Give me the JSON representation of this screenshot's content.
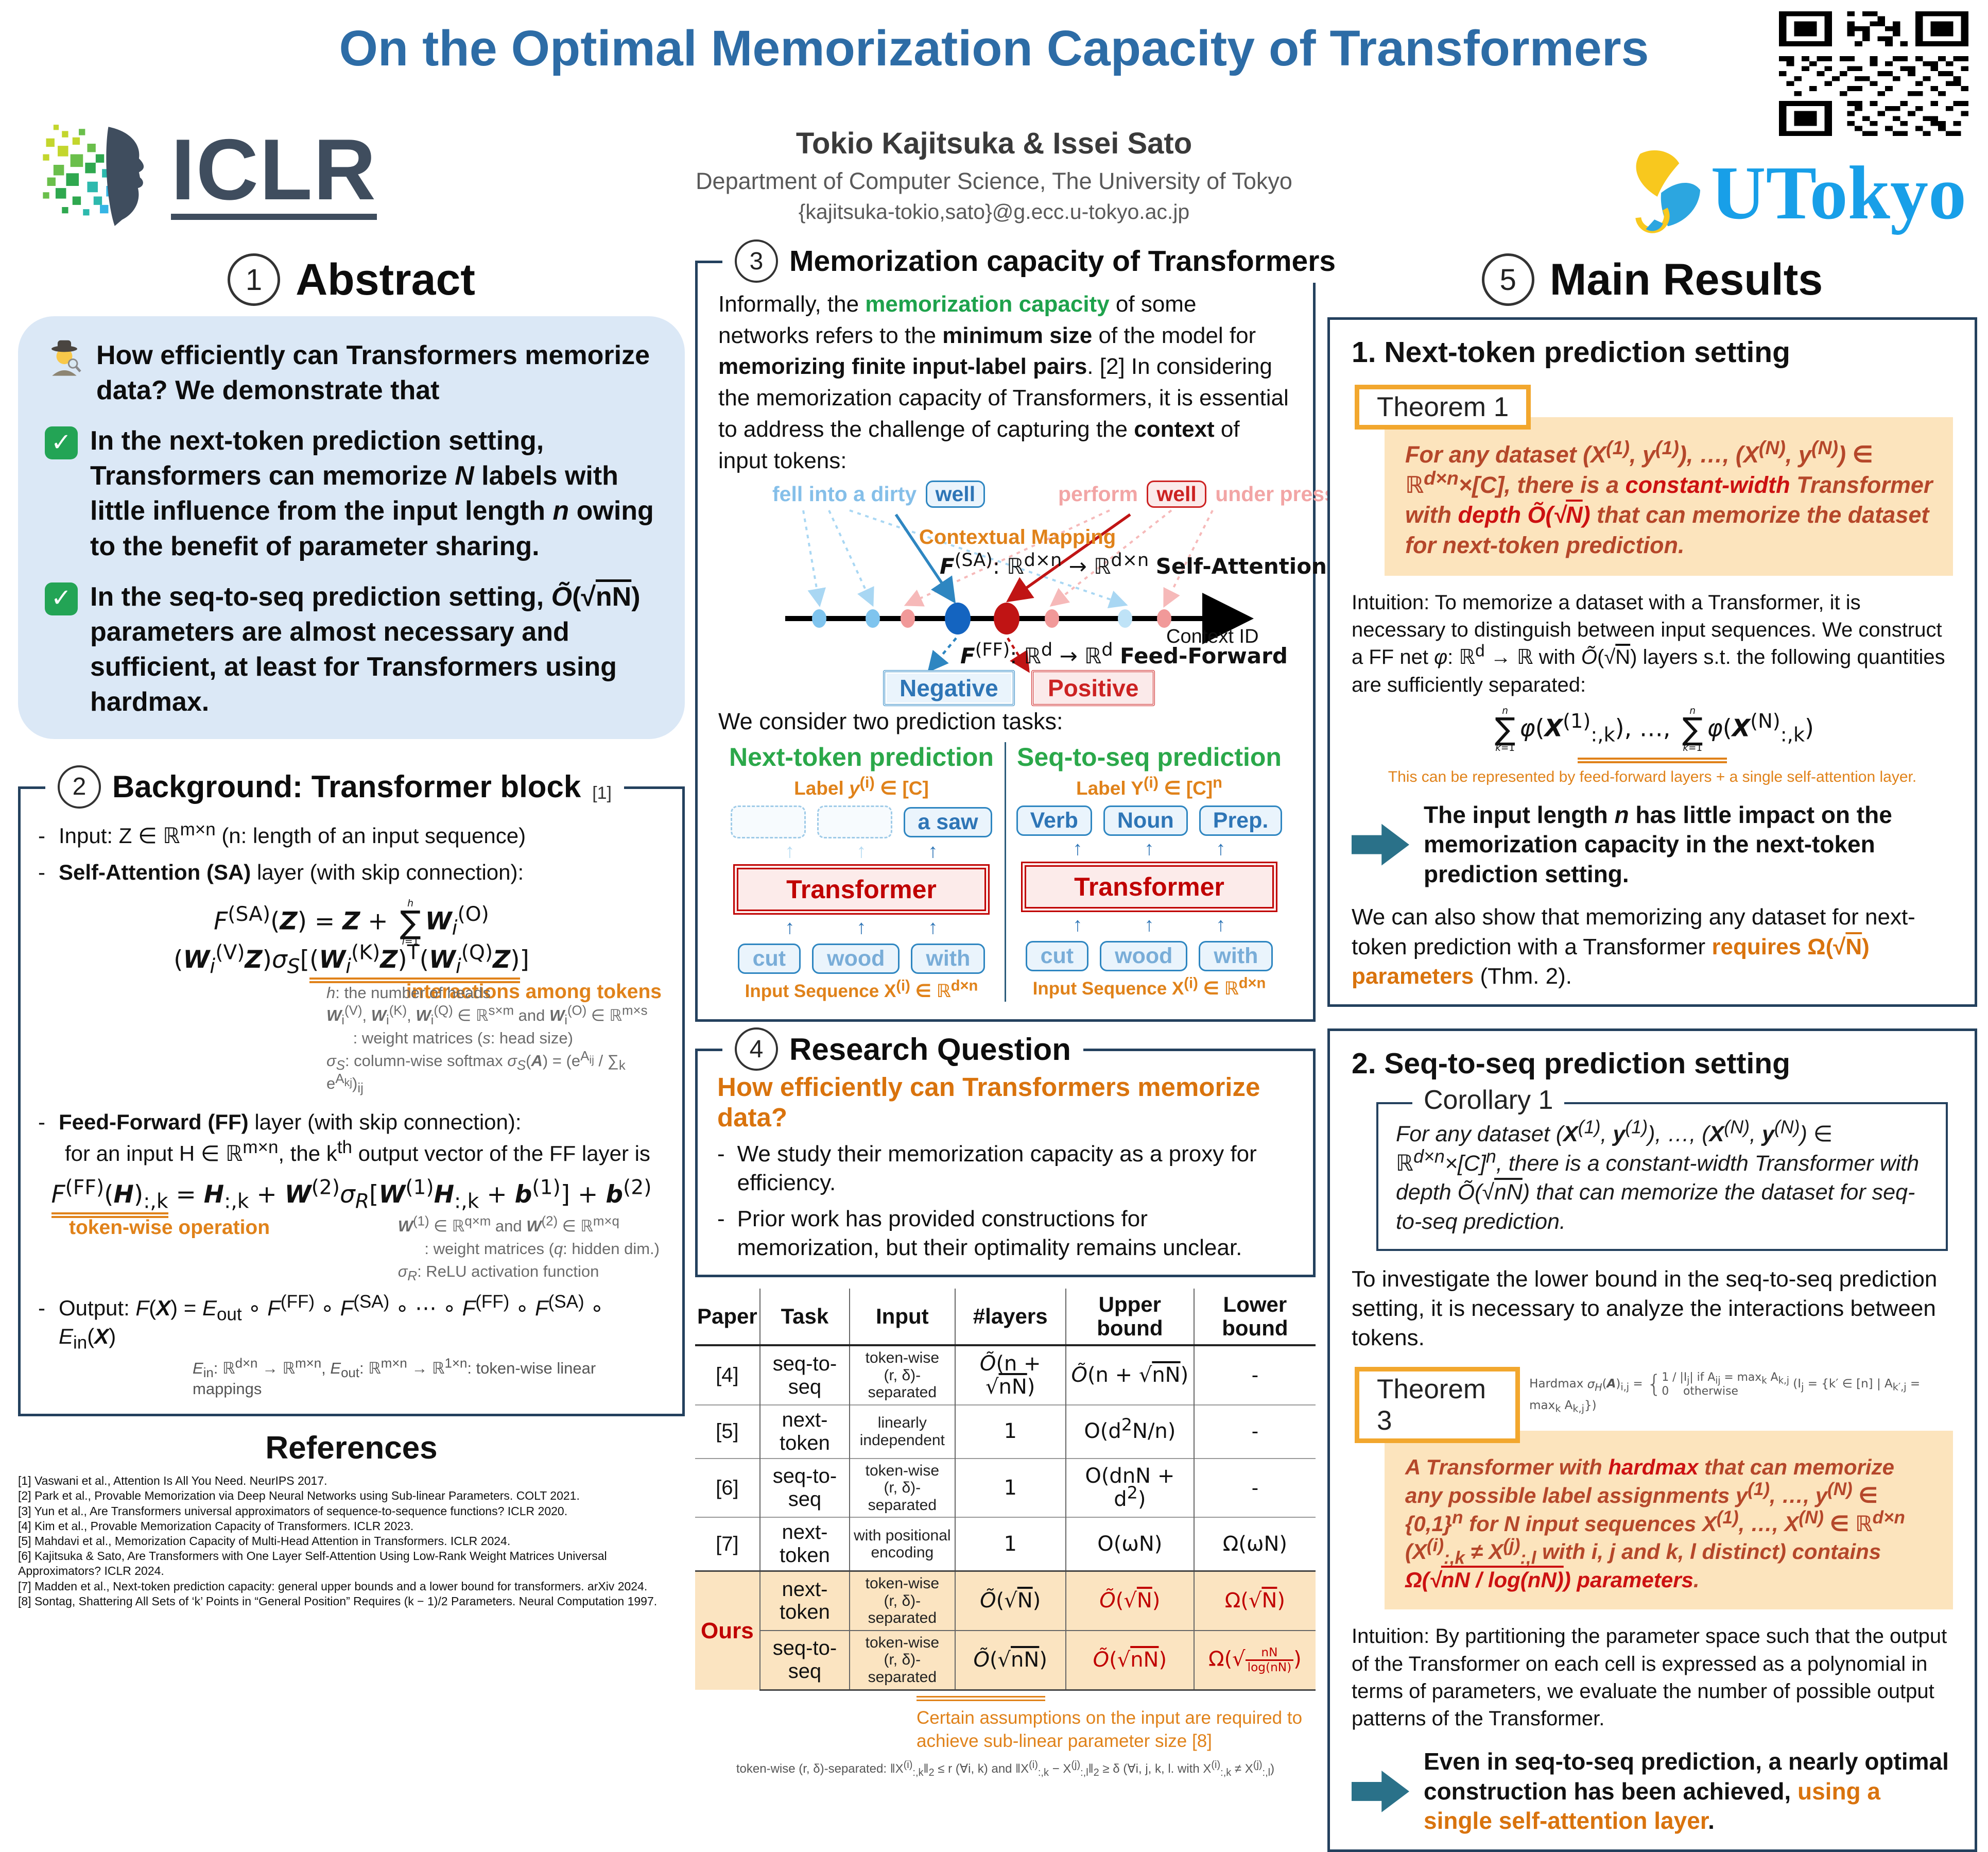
{
  "header": {
    "title": "On the Optimal Memorization Capacity of Transformers",
    "authors": "Tokio Kajitsuka & Issei Sato",
    "affiliation": "Department of Computer Science, The University of Tokyo",
    "email": "{kajitsuka-tokio,sato}@g.ecc.u-tokyo.ac.jp",
    "iclr_logo_text": "ICLR",
    "utokyo_logo_text": "UTokyo"
  },
  "icons": {
    "check": "✓",
    "up_arrow": "↑"
  },
  "colors": {
    "title_blue": "#2d6ca6",
    "navy_border": "#24415e",
    "orange": "#e0821a",
    "orange_text": "#d9730d",
    "green": "#1ea24c",
    "red": "#c00000",
    "theorem_fill": "#fce4bd",
    "theorem_border": "#f2a72e",
    "ours_row_bg": "#fbe4c1",
    "abstract_bg": "#dbe8f6",
    "teal_arrow": "#2a7189",
    "blue_box_border": "#2e86c1",
    "blue_text": "#2e75b6"
  },
  "abstract": {
    "number": "1",
    "title": "Abstract",
    "intro": "How efficiently can Transformers memorize data? We demonstrate that",
    "point1_html": "In the next-token prediction setting, Transformers can memorize <i>N</i> labels with little influence from the input length <i>n</i> owing to the benefit of parameter sharing.",
    "point2_html": "In the seq-to-seq prediction setting, <i>Õ</i>(√<span class='ov'>nN</span>) parameters are almost necessary and sufficient, at least for Transformers using hardmax."
  },
  "background": {
    "number": "2",
    "title": "Background: Transformer block",
    "ref": "[1]",
    "input_html": "Input: Z ∈ ℝ<sup>m×n</sup> (n: length of an input sequence)",
    "sa_head_html": "<b>Self-Attention (SA)</b> layer (with skip connection):",
    "sa_formula_html": "<i>F</i><sup>(SA)</sup>(<b><i>Z</i></b>) = <b><i>Z</i></b> + <span class='bigsum'><span class='lim'><i>h</i></span><span class='sig'>∑</span><span class='lim'><i>i</i>=1</span></span><b><i>W</i></b><sub><i>i</i></sub><sup>(O)</sup>(<b><i>W</i></b><sub><i>i</i></sub><sup>(V)</sup><b><i>Z</i></b>)<i>σ<sub>S</sub></i>[<span class='dblu'>(<b><i>W</i></b><sub><i>i</i></sub><sup>(K)</sup><b><i>Z</i></b>)<sup>T</sup>(<b><i>W</i></b><sub><i>i</i></sub><sup>(Q)</sup><b><i>Z</i></b>)</span>]",
    "sa_anno": "interactions among tokens",
    "sa_notes_html": "<i>h</i>: the number of heads<br><b><i>W</i></b><sub>i</sub><sup>(V)</sup>, <b><i>W</i></b><sub>i</sub><sup>(K)</sup>, <b><i>W</i></b><sub>i</sub><sup>(Q)</sup> ∈ ℝ<sup>s×m</sup> and <b><i>W</i></b><sub>i</sub><sup>(O)</sup> ∈ ℝ<sup>m×s</sup><br>&nbsp;&nbsp;&nbsp;&nbsp;&nbsp;&nbsp;: weight matrices (<i>s</i>: head size)<br><i>σ<sub>S</sub></i>: column-wise softmax <i>σ<sub>S</sub></i>(<b><i>A</i></b>) = (e<sup>A<sub>ij</sub></sup> / ∑<sub>k</sub> e<sup>A<sub>kj</sub></sup>)<sub>ij</sub>",
    "ff_head_html": "<b>Feed-Forward (FF)</b> layer (with skip connection):",
    "ff_sub_html": "for an input H ∈ ℝ<sup>m×n</sup>, the k<sup>th</sup> output vector of the FF layer is",
    "ff_formula_html": "<span class='dblu'><i>F</i><sup>(FF)</sup>(<b><i>H</i></b>)<sub>:,k</sub></span> = <b><i>H</i></b><sub>:,k</sub> + <b><i>W</i></b><sup>(2)</sup><i>σ<sub>R</sub></i>[<b><i>W</i></b><sup>(1)</sup><b><i>H</i></b><sub>:,k</sub> + <b><i>b</i></b><sup>(1)</sup>] + <b><i>b</i></b><sup>(2)</sup>",
    "ff_anno": "token-wise operation",
    "ff_notes_html": "<b><i>W</i></b><sup>(1)</sup> ∈ ℝ<sup>q×m</sup> and <b><i>W</i></b><sup>(2)</sup> ∈ ℝ<sup>m×q</sup><br>&nbsp;&nbsp;&nbsp;&nbsp;&nbsp;&nbsp;: weight matrices (<i>q</i>: hidden dim.)<br><i>σ<sub>R</sub></i>: ReLU activation function",
    "output_html": "Output: <i>F</i>(<b><i>X</i></b>) = <i>E</i><sub>out</sub> ∘ <i>F</i><sup>(FF)</sup> ∘ <i>F</i><sup>(SA)</sup> ∘ ⋯ ∘ <i>F</i><sup>(FF)</sup> ∘ <i>F</i><sup>(SA)</sup> ∘ <i>E</i><sub>in</sub>(<b><i>X</i></b>)",
    "output_note_html": "<i>E</i><sub>in</sub>: ℝ<sup>d×n</sup> → ℝ<sup>m×n</sup>, <i>E</i><sub>out</sub>: ℝ<sup>m×n</sup> → ℝ<sup>1×n</sup>: token-wise linear mappings"
  },
  "references": {
    "title": "References",
    "items": [
      "[1] Vaswani et al., Attention Is All You Need. NeurIPS 2017.",
      "[2] Park et al., Provable Memorization via Deep Neural Networks using Sub-linear Parameters. COLT 2021.",
      "[3] Yun et al., Are Transformers universal approximators of sequence-to-sequence functions? ICLR 2020.",
      "[4] Kim et al., Provable Memorization Capacity of Transformers. ICLR 2023.",
      "[5] Mahdavi et al., Memorization Capacity of Multi-Head Attention in Transformers. ICLR 2024.",
      "[6] Kajitsuka & Sato, Are Transformers with One Layer Self-Attention Using Low-Rank Weight Matrices Universal Approximators? ICLR 2024.",
      "[7] Madden et al., Next-token prediction capacity: general upper bounds and a lower bound for transformers. arXiv 2024.",
      "[8] Sontag, Shattering All Sets of ‘k’ Points in “General Position” Requires (k − 1)/2 Parameters. Neural Computation 1997."
    ]
  },
  "capacity": {
    "number": "3",
    "title": "Memorization capacity of Transformers",
    "intro_html": "Informally, the <span class='grn b'>memorization capacity</span> of some networks refers to the <b>minimum size</b> of the model for <b>memorizing finite input-label pairs</b>. [2] In considering the memorization capacity of Transformers, it is essential to address the challenge of capturing the <b>context</b> of input tokens:",
    "diagram": {
      "phrase_blue_pre": "fell into a dirty",
      "phrase_blue_word": "well",
      "phrase_red_pre": "perform",
      "phrase_red_word": "well",
      "phrase_red_post": "under pressure",
      "contextual_mapping": "Contextual Mapping",
      "sa_html": "<b><i>F</i></b><sup>(SA)</sup>: ℝ<sup>d×n</sup> → ℝ<sup>d×n</sup> <b>Self-Attention</b>",
      "context_id": "Context ID",
      "ff_html": "<b><i>F</i></b><sup>(FF)</sup>: ℝ<sup>d</sup> → ℝ<sup>d</sup> <b>Feed-Forward</b>",
      "negative": "Negative",
      "positive": "Positive"
    },
    "tasks_intro": "We consider two prediction tasks:",
    "next": {
      "title": "Next-token prediction",
      "label_html": "Label <i>y</i><sup>(i)</sup> ∈ [C]",
      "output": "a saw",
      "transformer": "Transformer",
      "tokens": [
        "cut",
        "wood",
        "with"
      ],
      "input_html": "Input Sequence X<sup>(i)</sup> ∈ ℝ<sup>d×n</sup>"
    },
    "seq": {
      "title": "Seq-to-seq prediction",
      "label_html": "Label Y<sup>(i)</sup> ∈ [C]<sup>n</sup>",
      "outputs": [
        "Verb",
        "Noun",
        "Prep."
      ],
      "transformer": "Transformer",
      "tokens": [
        "cut",
        "wood",
        "with"
      ],
      "input_html": "Input Sequence X<sup>(i)</sup> ∈ ℝ<sup>d×n</sup>"
    }
  },
  "research_question": {
    "number": "4",
    "title": "Research Question",
    "question": "How efficiently can Transformers memorize data?",
    "bullet1": "We study their memorization capacity as a proxy for efficiency.",
    "bullet2": "Prior work has provided constructions for memorization, but their optimality remains unclear."
  },
  "table": {
    "headers": [
      "Paper",
      "Task",
      "Input",
      "#layers",
      "Upper bound",
      "Lower bound"
    ],
    "rows": [
      {
        "paper": "[4]",
        "task": "seq-to-seq",
        "input_html": "token-wise<br>(r, δ)-separated",
        "layers_html": "<i>Õ</i>(n + √<span class='ov'>nN</span>)",
        "upper_html": "<i>Õ</i>(n + √<span class='ov'>nN</span>)",
        "lower_html": "-"
      },
      {
        "paper": "[5]",
        "task": "next-token",
        "input_html": "linearly<br>independent",
        "layers_html": "1",
        "upper_html": "O(d<sup>2</sup>N/n)",
        "lower_html": "-"
      },
      {
        "paper": "[6]",
        "task": "seq-to-seq",
        "input_html": "token-wise<br>(r, δ)-separated",
        "layers_html": "1",
        "upper_html": "O(dnN + d<sup>2</sup>)",
        "lower_html": "-"
      },
      {
        "paper": "[7]",
        "task": "next-token",
        "input_html": "with positional<br>encoding",
        "layers_html": "1",
        "upper_html": "O(ωN)",
        "lower_html": "Ω(ωN)"
      }
    ],
    "ours_label": "Ours",
    "ours_rows": [
      {
        "task": "next-token",
        "input_html": "token-wise<br>(r, δ)-separated",
        "layers_html": "<i>Õ</i>(√<span class='ov'>N</span>)",
        "upper_html": "<i>Õ</i>(√<span class='ov'>N</span>)",
        "lower_html": "Ω(√<span class='ov'>N</span>)"
      },
      {
        "task": "seq-to-seq",
        "input_html": "token-wise<br>(r, δ)-separated",
        "layers_html": "<i>Õ</i>(√<span class='ov'>nN</span>)",
        "upper_html": "<i>Õ</i>(√<span class='ov'>nN</span>)",
        "lower_html": "Ω(√<span class='fr'><span>nN</span><span class='den'>log(nN)</span></span>)"
      }
    ],
    "footnote_orange": "Certain assumptions on the input are required to achieve sub-linear parameter size [8]",
    "footnote_small_html": "token-wise (r, δ)-separated: ‖X<sup>(i)</sup><sub>:,k</sub>‖<sub>2</sub> ≤ r (∀i, k) and ‖X<sup>(i)</sup><sub>:,k</sub> − X<sup>(j)</sup><sub>:,l</sub>‖<sub>2</sub> ≥ δ (∀i, j, k, l. with X<sup>(i)</sup><sub>:,k</sub> ≠ X<sup>(j)</sup><sub>:,l</sub>)"
  },
  "results": {
    "number": "5",
    "title": "Main Results",
    "sub1": "1. Next-token prediction setting",
    "theorem1_label": "Theorem 1",
    "theorem1_html": "For any dataset (<b><i>X</i></b><sup>(1)</sup>, <i>y</i><sup>(1)</sup>), …, (<b><i>X</i></b><sup>(N)</sup>, <i>y</i><sup>(N)</sup>) ∈ ℝ<sup>d×n</sup>×[C], there is a <span class='red'>constant-width</span> Transformer with <span class='red'>depth <i>Õ</i>(√<span class='ov'>N</span>)</span> that can memorize the dataset for next-token prediction.",
    "intuition1_html": "Intuition: To memorize a dataset with a Transformer, it is necessary to distinguish between input sequences. We construct a FF net <i>φ</i>: ℝ<sup>d</sup> → ℝ with <i>Õ</i>(√<span class='ov'>N</span>) layers s.t. the following quantities are sufficiently separated:",
    "sum_formula_html": "<span class='bigsum'><span class='lim'><i>n</i></span><span class='sig'>∑</span><span class='lim'><i>k</i>=1</span></span><i>φ</i>(<b><i>X</i></b><sup>(1)</sup><sub>:,k</sub>), …, <span class='bigsum'><span class='lim'><i>n</i></span><span class='sig'>∑</span><span class='lim'><i>k</i>=1</span></span><i>φ</i>(<b><i>X</i></b><sup>(N)</sup><sub>:,k</sub>)",
    "sum_caption": "This can be represented by feed-forward layers + a single self-attention layer.",
    "takeaway1_html": "The input length <i>n</i> has little impact on the memorization capacity in the next-token prediction setting.",
    "also_html": "We can also show that memorizing any dataset for next-token prediction with a Transformer <span class='orn'>requires Ω(√<span class='ov'>N</span>) parameters</span> (Thm. 2).",
    "sub2": "2. Seq-to-seq prediction setting",
    "corollary_label": "Corollary 1",
    "corollary_html": "For any dataset (<b><i>X</i></b><sup>(1)</sup>, <b><i>y</i></b><sup>(1)</sup>), …, (<b><i>X</i></b><sup>(N)</sup>, <b><i>y</i></b><sup>(N)</sup>) ∈ ℝ<sup>d×n</sup>×[C]<sup>n</sup>, there is a constant-width Transformer with depth <i>Õ</i>(√<span class='ov'>nN</span>) that can memorize the dataset for seq-to-seq prediction.",
    "investigate": "To investigate the lower bound in the seq-to-seq prediction setting, it is necessary to analyze the interactions between tokens.",
    "hardmax_html": "Hardmax <i>σ<sub>H</sub></i>(<b><i>A</i></b>)<sub>i,j</sub> = <span class='brace'>{</span><span class='cases'><span>1 / |I<sub>j</sub>| if A<sub>ij</sub> = max<sub>k</sub> A<sub>k,j</sub></span><span>0&nbsp;&nbsp;&nbsp;&nbsp;otherwise</span></span> (I<sub>j</sub> = {k′ ∈ [n] | A<sub>k′,j</sub> = max<sub>k</sub> A<sub>k,j</sub>})",
    "theorem3_label": "Theorem 3",
    "theorem3_html": "A Transformer with <span class='red'>hardmax</span> that can memorize any possible label assignments <b><i>y</i></b><sup>(1)</sup>, …, <b><i>y</i></b><sup>(N)</sup> ∈ {0,1}<sup>n</sup> for N input sequences <b><i>X</i></b><sup>(1)</sup>, …, <b><i>X</i></b><sup>(N)</sup> ∈ ℝ<sup>d×n</sup> (X<sup>(i)</sup><sub>:,k</sub> ≠ X<sup>(j)</sup><sub>:,l</sub> with i, j and k, l distinct) contains <span class='red'>Ω(√<span class='ov'>nN / log(nN)</span>) parameters</span>.",
    "intuition3": "Intuition: By partitioning the parameter space such that the output of the Transformer on each cell is expressed as a polynomial in terms of parameters, we evaluate the number of possible output patterns of the Transformer.",
    "takeaway2_html": "Even in seq-to-seq prediction, a nearly optimal construction has been achieved, <span class='orn'>using a single self-attention layer</span>."
  }
}
